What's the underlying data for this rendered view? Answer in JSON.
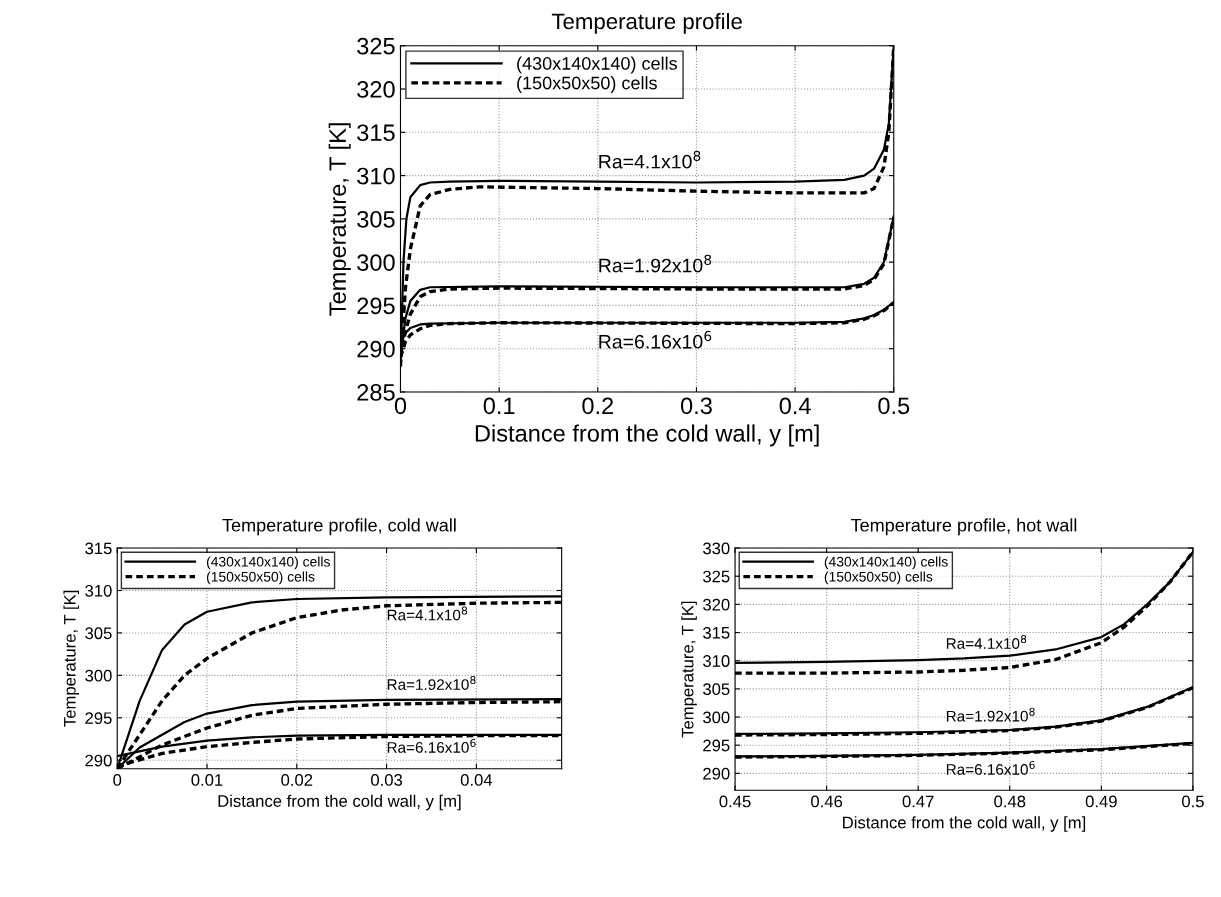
{
  "chart_data": [
    {
      "type": "line",
      "title": "Temperature profile",
      "xlabel": "Distance from the cold wall, y [m]",
      "ylabel": "Temperature, T [K]",
      "xlim": [
        0,
        0.5
      ],
      "xticks": [
        0,
        0.1,
        0.2,
        0.3,
        0.4,
        0.5
      ],
      "ylim": [
        285,
        325
      ],
      "yticks": [
        285,
        290,
        295,
        300,
        305,
        310,
        315,
        320,
        325
      ],
      "grid": true,
      "legend": "top left",
      "series": [
        {
          "name": "(430x140x140) cells",
          "color": "#000000",
          "line_style": "solid",
          "x": [
            0,
            0.003,
            0.006,
            0.01,
            0.02,
            0.03,
            0.05,
            0.1,
            0.2,
            0.3,
            0.4,
            0.45,
            0.47,
            0.48,
            0.49,
            0.495,
            0.5
          ],
          "values": [
            288,
            300,
            305,
            307.5,
            308.9,
            309.2,
            309.3,
            309.4,
            309.3,
            309.2,
            309.3,
            309.5,
            310,
            310.8,
            313,
            316,
            325
          ]
        },
        {
          "name": "(150x50x50) cells",
          "color": "#000000",
          "line_style": "dashed",
          "x": [
            0,
            0.005,
            0.01,
            0.02,
            0.03,
            0.05,
            0.08,
            0.2,
            0.3,
            0.4,
            0.47,
            0.48,
            0.49,
            0.495,
            0.5
          ],
          "values": [
            288,
            297,
            301.5,
            306.5,
            307.8,
            308.4,
            308.7,
            308.5,
            308.2,
            308,
            308,
            308.5,
            311,
            315,
            325
          ]
        },
        {
          "color": "#000000",
          "line_style": "solid",
          "x": [
            0,
            0.005,
            0.01,
            0.02,
            0.03,
            0.1,
            0.3,
            0.45,
            0.47,
            0.48,
            0.49,
            0.5
          ],
          "values": [
            289,
            293.5,
            295.5,
            296.8,
            297.1,
            297.2,
            297.1,
            297.1,
            297.5,
            298.2,
            300,
            305.3
          ]
        },
        {
          "color": "#000000",
          "line_style": "dashed",
          "x": [
            0,
            0.005,
            0.01,
            0.02,
            0.03,
            0.05,
            0.1,
            0.3,
            0.45,
            0.47,
            0.48,
            0.49,
            0.5
          ],
          "values": [
            289,
            292,
            294,
            296,
            296.6,
            296.9,
            297,
            296.9,
            296.9,
            297.3,
            298,
            299.8,
            305.2
          ]
        },
        {
          "color": "#000000",
          "line_style": "solid",
          "x": [
            0,
            0.005,
            0.01,
            0.02,
            0.03,
            0.1,
            0.4,
            0.45,
            0.47,
            0.48,
            0.49,
            0.5
          ],
          "values": [
            290.5,
            291.8,
            292.4,
            292.8,
            292.9,
            293,
            293,
            293.1,
            293.5,
            293.9,
            294.5,
            295.4
          ]
        },
        {
          "color": "#000000",
          "line_style": "dashed",
          "x": [
            0,
            0.005,
            0.01,
            0.02,
            0.03,
            0.05,
            0.1,
            0.4,
            0.45,
            0.47,
            0.48,
            0.49,
            0.5
          ],
          "values": [
            289,
            290.8,
            291.6,
            292.3,
            292.7,
            292.9,
            293,
            292.9,
            293,
            293.4,
            293.8,
            294.4,
            295.3
          ]
        }
      ],
      "annotations": [
        "Ra=4.1x10$^{8}$",
        "Ra=1.92x10$^{8}$",
        "Ra=6.16x10$^{6}$"
      ]
    },
    {
      "type": "line",
      "title": "Temperature profile, cold wall",
      "xlabel": "Distance from the cold wall, y [m]",
      "ylabel": "Temperature, T [K]",
      "xlim": [
        0,
        0.0495
      ],
      "xticks": [
        0,
        0.01,
        0.02,
        0.03,
        0.04
      ],
      "ylim": [
        289,
        315
      ],
      "yticks": [
        290,
        295,
        300,
        305,
        310,
        315
      ],
      "grid": true,
      "legend": "top left",
      "series": [
        {
          "name": "(430x140x140) cells",
          "color": "#000000",
          "line_style": "solid",
          "x": [
            0,
            0.0025,
            0.005,
            0.0075,
            0.01,
            0.015,
            0.02,
            0.03,
            0.0495
          ],
          "values": [
            289,
            297,
            303,
            306,
            307.5,
            308.6,
            309,
            309.2,
            309.3
          ]
        },
        {
          "name": "(150x50x50) cells",
          "color": "#000000",
          "line_style": "dashed",
          "x": [
            0,
            0.0025,
            0.005,
            0.0075,
            0.01,
            0.015,
            0.02,
            0.025,
            0.03,
            0.04,
            0.0495
          ],
          "values": [
            289,
            293,
            297,
            300,
            302,
            305,
            306.8,
            307.7,
            308.2,
            308.5,
            308.6
          ]
        },
        {
          "color": "#000000",
          "line_style": "solid",
          "x": [
            0,
            0.0025,
            0.005,
            0.0075,
            0.01,
            0.015,
            0.02,
            0.03,
            0.0495
          ],
          "values": [
            289,
            291.5,
            293,
            294.5,
            295.5,
            296.5,
            296.9,
            297.1,
            297.2
          ]
        },
        {
          "color": "#000000",
          "line_style": "dashed",
          "x": [
            0,
            0.005,
            0.01,
            0.015,
            0.02,
            0.03,
            0.04,
            0.0495
          ],
          "values": [
            289,
            291.8,
            293.8,
            295.3,
            296.1,
            296.6,
            296.8,
            296.9
          ]
        },
        {
          "color": "#000000",
          "line_style": "solid",
          "x": [
            0,
            0.005,
            0.01,
            0.015,
            0.02,
            0.03,
            0.0495
          ],
          "values": [
            290.5,
            291.6,
            292.3,
            292.7,
            292.9,
            293,
            293
          ]
        },
        {
          "color": "#000000",
          "line_style": "dashed",
          "x": [
            0,
            0.005,
            0.01,
            0.015,
            0.02,
            0.03,
            0.04,
            0.0495
          ],
          "values": [
            289.3,
            290.8,
            291.6,
            292.1,
            292.5,
            292.8,
            292.9,
            292.9
          ]
        }
      ],
      "annotations": [
        "Ra=4.1x10$^{8}$",
        "Ra=1.92x10$^{8}$",
        "Ra=6.16x10$^{6}$"
      ]
    },
    {
      "type": "line",
      "title": "Temperature profile, hot wall",
      "xlabel": "Distance from the cold wall, y [m]",
      "ylabel": "Temperature, T [K]",
      "xlim": [
        0.45,
        0.5
      ],
      "xticks": [
        0.45,
        0.46,
        0.47,
        0.48,
        0.49,
        0.5
      ],
      "ylim": [
        287,
        330
      ],
      "yticks": [
        290,
        295,
        300,
        305,
        310,
        315,
        320,
        325,
        330
      ],
      "grid": true,
      "legend": "top left",
      "series": [
        {
          "name": "(430x140x140) cells",
          "color": "#000000",
          "line_style": "solid",
          "x": [
            0.45,
            0.46,
            0.47,
            0.475,
            0.48,
            0.485,
            0.49,
            0.4925,
            0.495,
            0.4975,
            0.5
          ],
          "values": [
            309.6,
            309.8,
            310.1,
            310.4,
            310.9,
            312,
            314.2,
            316.5,
            320,
            324,
            329.3
          ]
        },
        {
          "name": "(150x50x50) cells",
          "color": "#000000",
          "line_style": "dashed",
          "x": [
            0.45,
            0.46,
            0.47,
            0.475,
            0.48,
            0.485,
            0.49,
            0.4925,
            0.495,
            0.4975,
            0.5
          ],
          "values": [
            307.8,
            307.8,
            308,
            308.3,
            308.8,
            310.2,
            313.2,
            316,
            319.7,
            324,
            329.3
          ]
        },
        {
          "color": "#000000",
          "line_style": "solid",
          "x": [
            0.45,
            0.46,
            0.47,
            0.48,
            0.485,
            0.49,
            0.495,
            0.5
          ],
          "values": [
            297,
            297.1,
            297.3,
            297.7,
            298.3,
            299.4,
            301.8,
            305.3
          ]
        },
        {
          "color": "#000000",
          "line_style": "dashed",
          "x": [
            0.45,
            0.46,
            0.47,
            0.48,
            0.485,
            0.49,
            0.495,
            0.5
          ],
          "values": [
            296.8,
            296.9,
            297.1,
            297.6,
            298.2,
            299.3,
            301.7,
            305.2
          ]
        },
        {
          "color": "#000000",
          "line_style": "solid",
          "x": [
            0.45,
            0.46,
            0.47,
            0.48,
            0.49,
            0.5
          ],
          "values": [
            293,
            293.1,
            293.3,
            293.7,
            294.3,
            295.4
          ]
        },
        {
          "color": "#000000",
          "line_style": "dashed",
          "x": [
            0.45,
            0.46,
            0.47,
            0.48,
            0.49,
            0.5
          ],
          "values": [
            292.9,
            293,
            293.2,
            293.6,
            294.2,
            295.3
          ]
        }
      ],
      "annotations": [
        "Ra=4.1x10$^{8}$",
        "Ra=1.92x10$^{8}$",
        "Ra=6.16x10$^{6}$"
      ]
    }
  ]
}
